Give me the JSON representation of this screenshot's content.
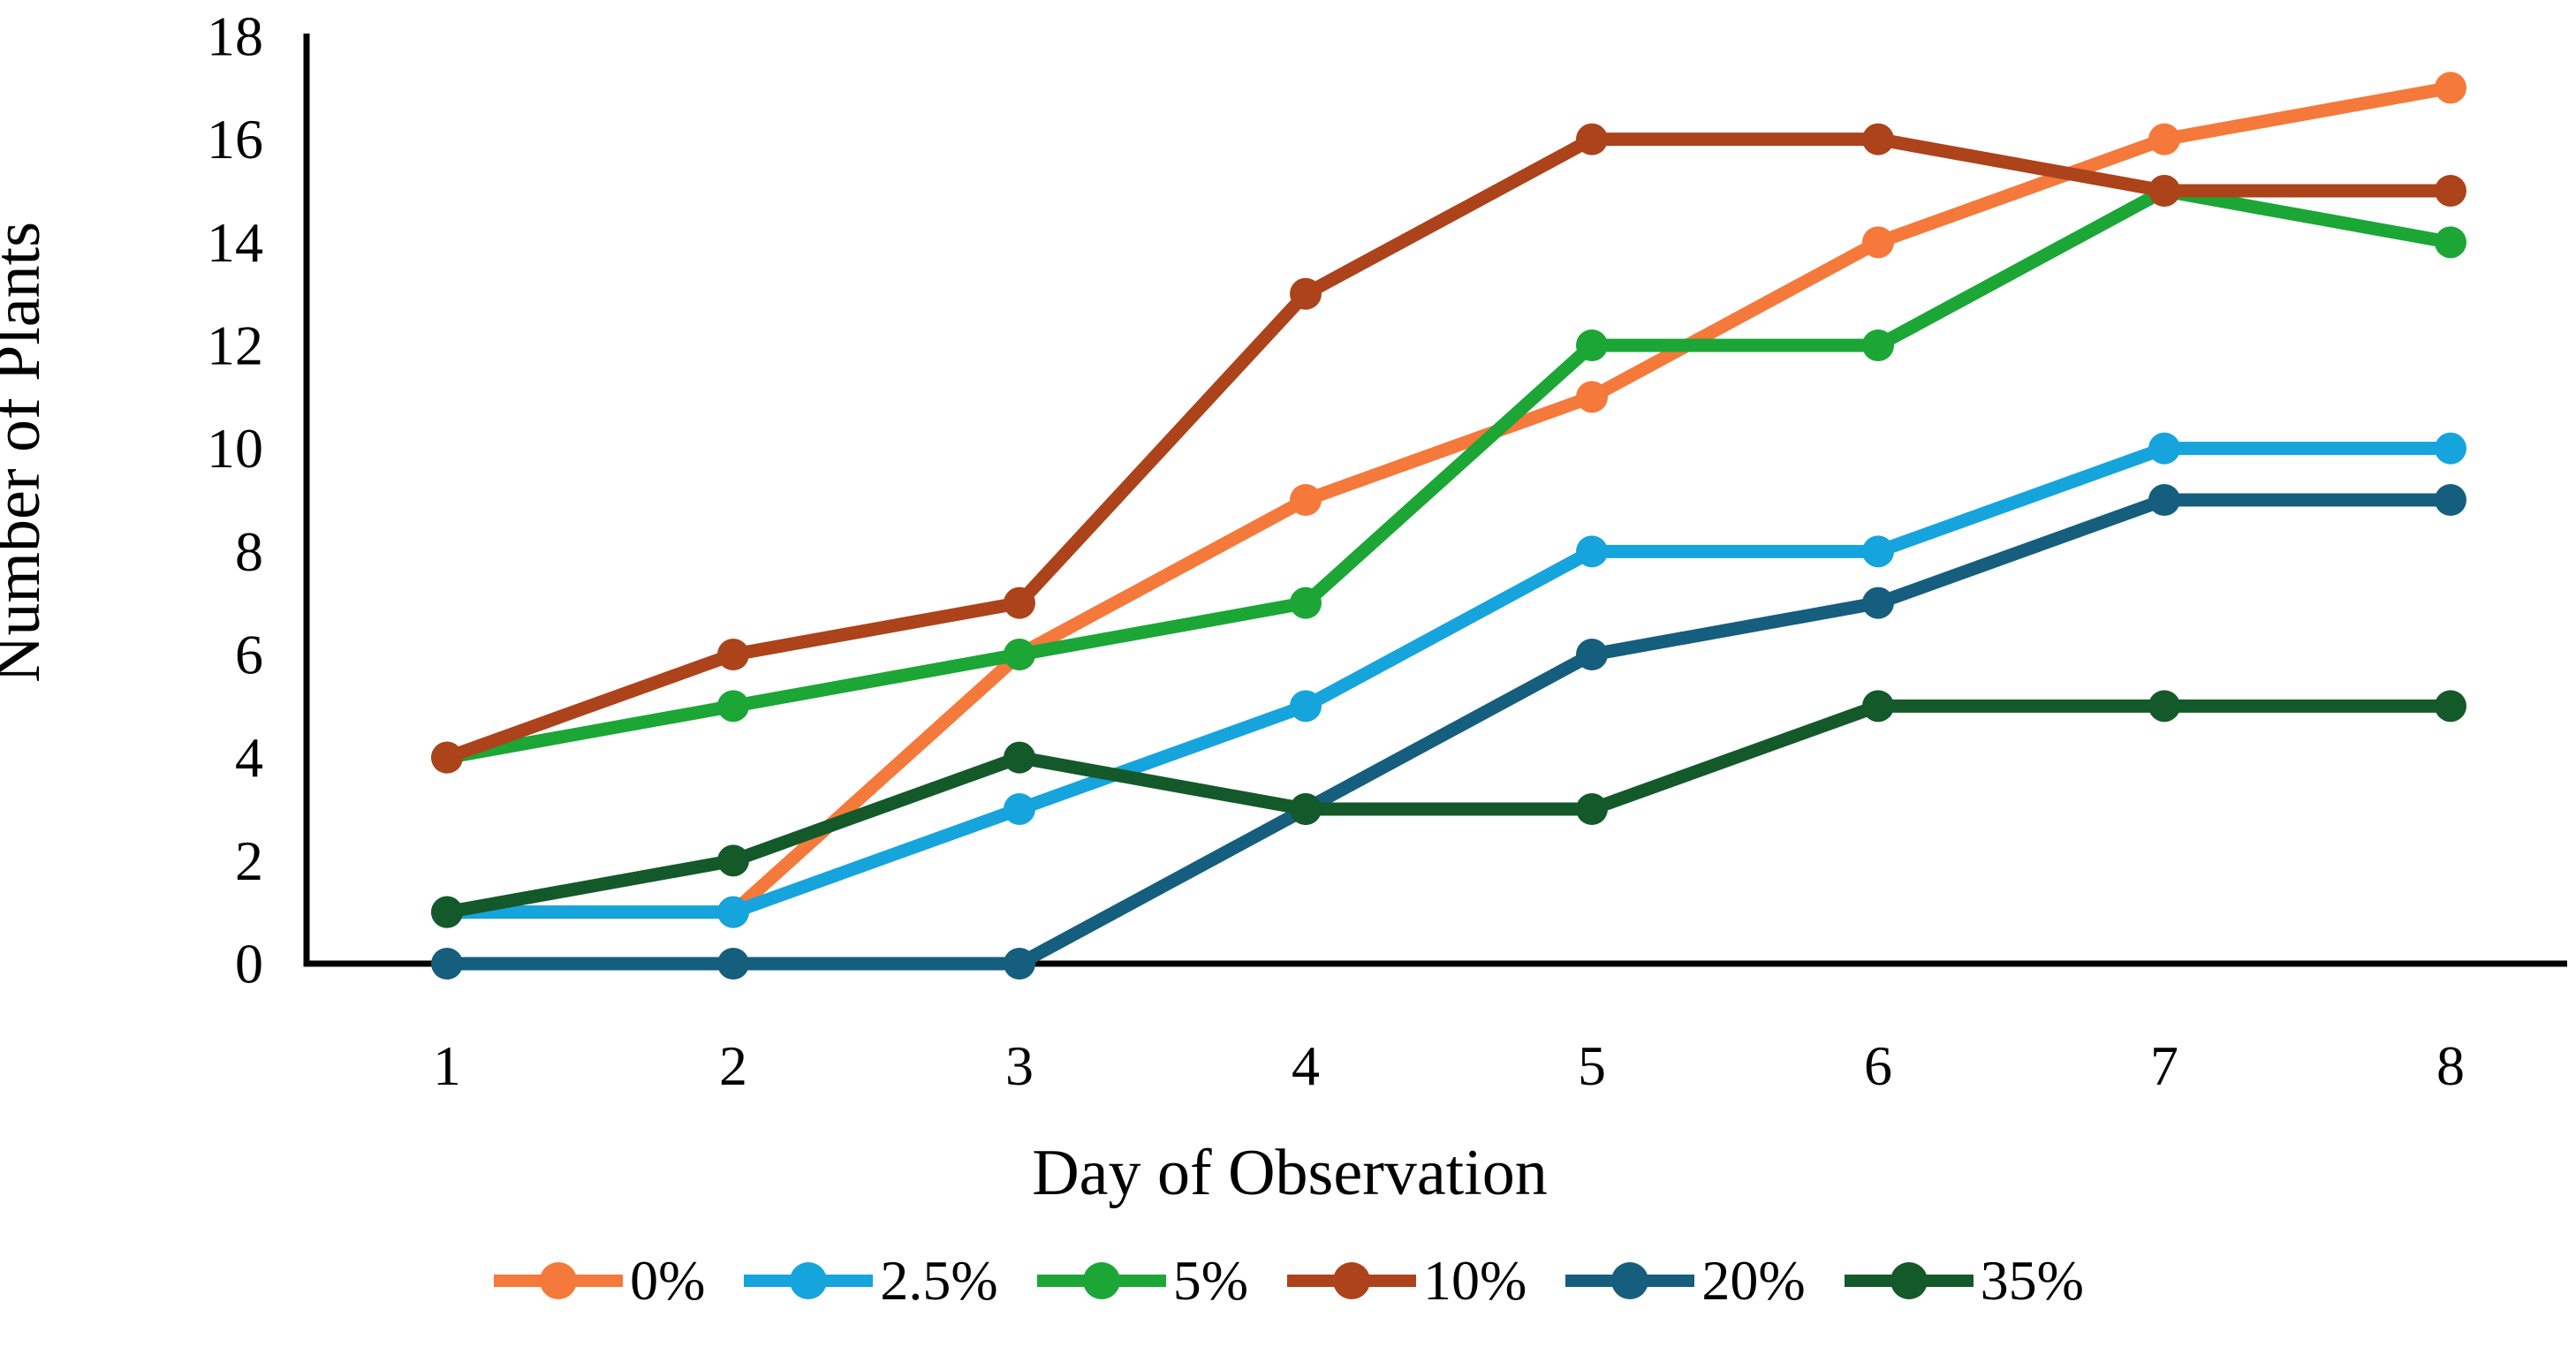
{
  "chart_data": {
    "type": "line",
    "title": "",
    "xlabel": "Day of Observation",
    "ylabel": "Number of Plants",
    "x": [
      1,
      2,
      3,
      4,
      5,
      6,
      7,
      8
    ],
    "x_tick_labels": [
      "1",
      "2",
      "3",
      "4",
      "5",
      "6",
      "7",
      "8"
    ],
    "y_tick_labels": [
      "0",
      "2",
      "4",
      "6",
      "8",
      "10",
      "12",
      "14",
      "16",
      "18"
    ],
    "ylim": [
      0,
      18
    ],
    "ytick_step": 2,
    "grid": false,
    "legend_position": "bottom-center",
    "background_color": "#ffffff",
    "axis_color": "#000000",
    "marker": "circle",
    "series": [
      {
        "name": "0%",
        "color": "#F4793B",
        "values": [
          1,
          1,
          6,
          9,
          11,
          14,
          16,
          17
        ]
      },
      {
        "name": "2.5%",
        "color": "#16A4DC",
        "values": [
          1,
          1,
          3,
          5,
          8,
          8,
          10,
          10
        ]
      },
      {
        "name": "5%",
        "color": "#1BA636",
        "values": [
          4,
          5,
          6,
          7,
          12,
          12,
          15,
          14
        ]
      },
      {
        "name": "10%",
        "color": "#AC431A",
        "values": [
          4,
          6,
          7,
          13,
          16,
          16,
          15,
          15
        ]
      },
      {
        "name": "20%",
        "color": "#155E7D",
        "values": [
          0,
          0,
          0,
          3,
          6,
          7,
          9,
          9
        ]
      },
      {
        "name": "35%",
        "color": "#14592A",
        "values": [
          1,
          2,
          4,
          3,
          3,
          5,
          5,
          5
        ]
      }
    ]
  }
}
